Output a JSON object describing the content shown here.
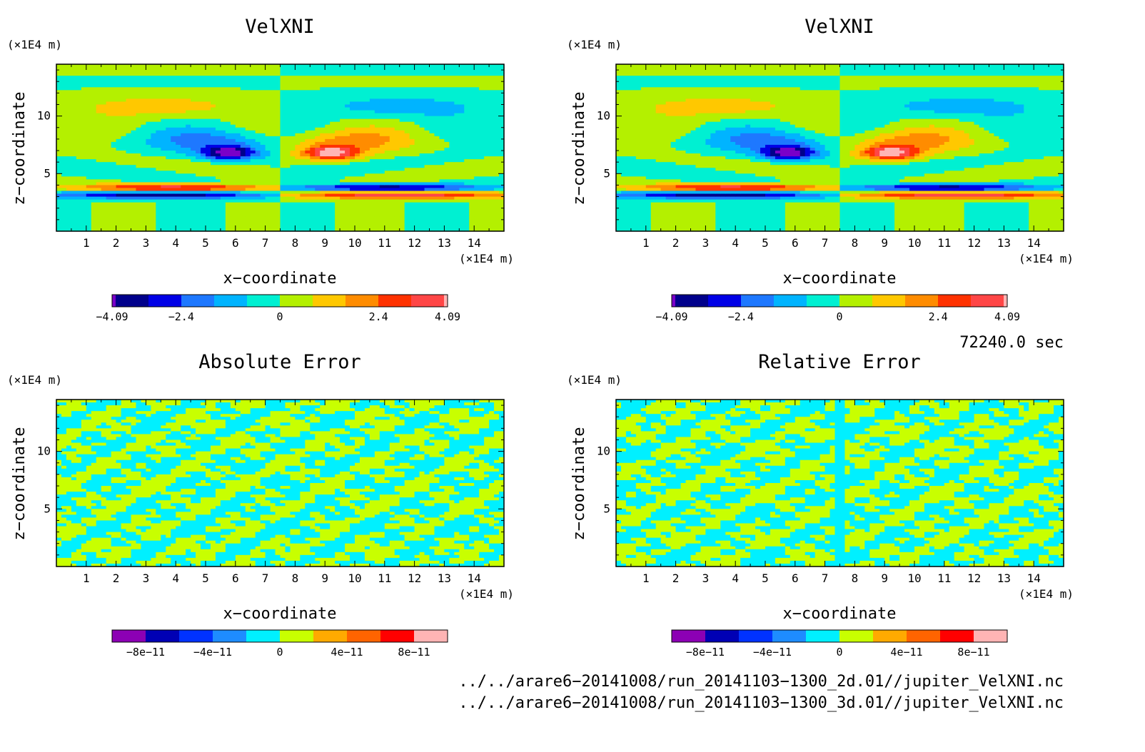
{
  "panels": [
    {
      "id": "velxni-2d",
      "title": "VelXNI",
      "xlabel": "x−coordinate",
      "ylabel": "z−coordinate",
      "x_unit": "(×1E4 m)",
      "y_unit": "(×1E4 m)",
      "x_ticks": [
        "1",
        "2",
        "3",
        "4",
        "5",
        "6",
        "7",
        "8",
        "9",
        "10",
        "11",
        "12",
        "13",
        "14"
      ],
      "y_ticks": [
        "5",
        "10"
      ],
      "colorbar": {
        "labels": [
          "−4.09",
          "−2.4",
          "0",
          "2.4",
          "4.09"
        ],
        "colors": [
          "#7a00c8",
          "#00008b",
          "#0000e6",
          "#1e78ff",
          "#00b4ff",
          "#00f0d2",
          "#b4f000",
          "#ffc800",
          "#ff8c00",
          "#ff3200",
          "#ff4646",
          "#ffb4b4"
        ]
      }
    },
    {
      "id": "velxni-3d",
      "title": "VelXNI",
      "xlabel": "x−coordinate",
      "ylabel": "z−coordinate",
      "x_unit": "(×1E4 m)",
      "y_unit": "(×1E4 m)",
      "x_ticks": [
        "1",
        "2",
        "3",
        "4",
        "5",
        "6",
        "7",
        "8",
        "9",
        "10",
        "11",
        "12",
        "13",
        "14"
      ],
      "y_ticks": [
        "5",
        "10"
      ],
      "colorbar": {
        "labels": [
          "−4.09",
          "−2.4",
          "0",
          "2.4",
          "4.09"
        ],
        "colors": [
          "#7a00c8",
          "#00008b",
          "#0000e6",
          "#1e78ff",
          "#00b4ff",
          "#00f0d2",
          "#b4f000",
          "#ffc800",
          "#ff8c00",
          "#ff3200",
          "#ff4646",
          "#ffb4b4"
        ]
      }
    },
    {
      "id": "absolute-error",
      "title": "Absolute Error",
      "xlabel": "x−coordinate",
      "ylabel": "z−coordinate",
      "x_unit": "(×1E4 m)",
      "y_unit": "(×1E4 m)",
      "x_ticks": [
        "1",
        "2",
        "3",
        "4",
        "5",
        "6",
        "7",
        "8",
        "9",
        "10",
        "11",
        "12",
        "13",
        "14"
      ],
      "y_ticks": [
        "5",
        "10"
      ],
      "colorbar": {
        "labels": [
          "−8e−11",
          "−4e−11",
          "0",
          "4e−11",
          "8e−11"
        ],
        "colors": [
          "#8c00b4",
          "#0000b4",
          "#0032ff",
          "#1e8cff",
          "#00f0ff",
          "#c8ff00",
          "#ffaa00",
          "#ff6400",
          "#ff0000",
          "#ffb4b4"
        ]
      }
    },
    {
      "id": "relative-error",
      "title": "Relative Error",
      "xlabel": "x−coordinate",
      "ylabel": "z−coordinate",
      "x_unit": "(×1E4 m)",
      "y_unit": "(×1E4 m)",
      "x_ticks": [
        "1",
        "2",
        "3",
        "4",
        "5",
        "6",
        "7",
        "8",
        "9",
        "10",
        "11",
        "12",
        "13",
        "14"
      ],
      "y_ticks": [
        "5",
        "10"
      ],
      "colorbar": {
        "labels": [
          "−8e−11",
          "−4e−11",
          "0",
          "4e−11",
          "8e−11"
        ],
        "colors": [
          "#8c00b4",
          "#0000b4",
          "#0032ff",
          "#1e8cff",
          "#00f0ff",
          "#c8ff00",
          "#ffaa00",
          "#ff6400",
          "#ff0000",
          "#ffb4b4"
        ]
      }
    }
  ],
  "time_label": "72240.0 sec",
  "file_paths": [
    "../../arare6−20141008/run_20141103−1300_2d.01//jupiter_VelXNI.nc",
    "../../arare6−20141008/run_20141103−1300_3d.01//jupiter_VelXNI.nc"
  ],
  "chart_data": [
    {
      "type": "heatmap",
      "title": "VelXNI",
      "xlabel": "x−coordinate (×1E4 m)",
      "ylabel": "z−coordinate (×1E4 m)",
      "xlim": [
        0,
        15
      ],
      "ylim": [
        0,
        14.5
      ],
      "color_range": [
        -4.09,
        4.09
      ],
      "colorbar_ticks": [
        -4.09,
        -2.4,
        0,
        2.4,
        4.09
      ],
      "features": [
        {
          "x": [
            0.5,
            6.5
          ],
          "z": [
            3.5,
            4.1
          ],
          "value": 2.4
        },
        {
          "x": [
            0.5,
            6.5
          ],
          "z": [
            2.9,
            3.4
          ],
          "value": -2.4
        },
        {
          "x": [
            5.0,
            6.5
          ],
          "z": [
            6.4,
            7.3
          ],
          "value": -3.5
        },
        {
          "x": [
            1.0,
            6.0
          ],
          "z": [
            10.0,
            11.8
          ],
          "value": 1.0
        },
        {
          "x": [
            8.0,
            15.0
          ],
          "z": [
            3.5,
            4.1
          ],
          "value": -2.4
        },
        {
          "x": [
            8.0,
            15.0
          ],
          "z": [
            2.9,
            3.4
          ],
          "value": 2.4
        },
        {
          "x": [
            7.8,
            9.5
          ],
          "z": [
            6.4,
            7.3
          ],
          "value": 3.5
        },
        {
          "x": [
            9.0,
            14.0
          ],
          "z": [
            10.0,
            11.8
          ],
          "value": -1.0
        }
      ]
    },
    {
      "type": "heatmap",
      "title": "VelXNI",
      "xlabel": "x−coordinate (×1E4 m)",
      "ylabel": "z−coordinate (×1E4 m)",
      "xlim": [
        0,
        15
      ],
      "ylim": [
        0,
        14.5
      ],
      "color_range": [
        -4.09,
        4.09
      ],
      "colorbar_ticks": [
        -4.09,
        -2.4,
        0,
        2.4,
        4.09
      ],
      "features": [
        {
          "x": [
            0.5,
            6.5
          ],
          "z": [
            3.5,
            4.1
          ],
          "value": 2.4
        },
        {
          "x": [
            0.5,
            6.5
          ],
          "z": [
            2.9,
            3.4
          ],
          "value": -2.4
        },
        {
          "x": [
            5.0,
            6.5
          ],
          "z": [
            6.4,
            7.3
          ],
          "value": -3.5
        },
        {
          "x": [
            1.0,
            6.0
          ],
          "z": [
            10.0,
            11.8
          ],
          "value": 1.0
        },
        {
          "x": [
            8.0,
            15.0
          ],
          "z": [
            3.5,
            4.1
          ],
          "value": -2.4
        },
        {
          "x": [
            8.0,
            15.0
          ],
          "z": [
            2.9,
            3.4
          ],
          "value": 2.4
        },
        {
          "x": [
            7.8,
            9.5
          ],
          "z": [
            6.4,
            7.3
          ],
          "value": 3.5
        },
        {
          "x": [
            9.0,
            14.0
          ],
          "z": [
            10.0,
            11.8
          ],
          "value": -1.0
        }
      ]
    },
    {
      "type": "heatmap",
      "title": "Absolute Error",
      "xlabel": "x−coordinate (×1E4 m)",
      "ylabel": "z−coordinate (×1E4 m)",
      "xlim": [
        0,
        15
      ],
      "ylim": [
        0,
        14.5
      ],
      "colorbar_ticks": [
        "−8e−11",
        "−4e−11",
        "0",
        "4e−11",
        "8e−11"
      ],
      "values_present": [
        "0 to −1e−11 (cyan)",
        "0 to 1e−11 (yellow-green)"
      ]
    },
    {
      "type": "heatmap",
      "title": "Relative Error",
      "xlabel": "x−coordinate (×1E4 m)",
      "ylabel": "z−coordinate (×1E4 m)",
      "xlim": [
        0,
        15
      ],
      "ylim": [
        0,
        14.5
      ],
      "colorbar_ticks": [
        "−8e−11",
        "−4e−11",
        "0",
        "4e−11",
        "8e−11"
      ],
      "values_present": [
        "0 to −1e−11 (cyan)",
        "0 to 1e−11 (yellow-green)"
      ]
    }
  ]
}
